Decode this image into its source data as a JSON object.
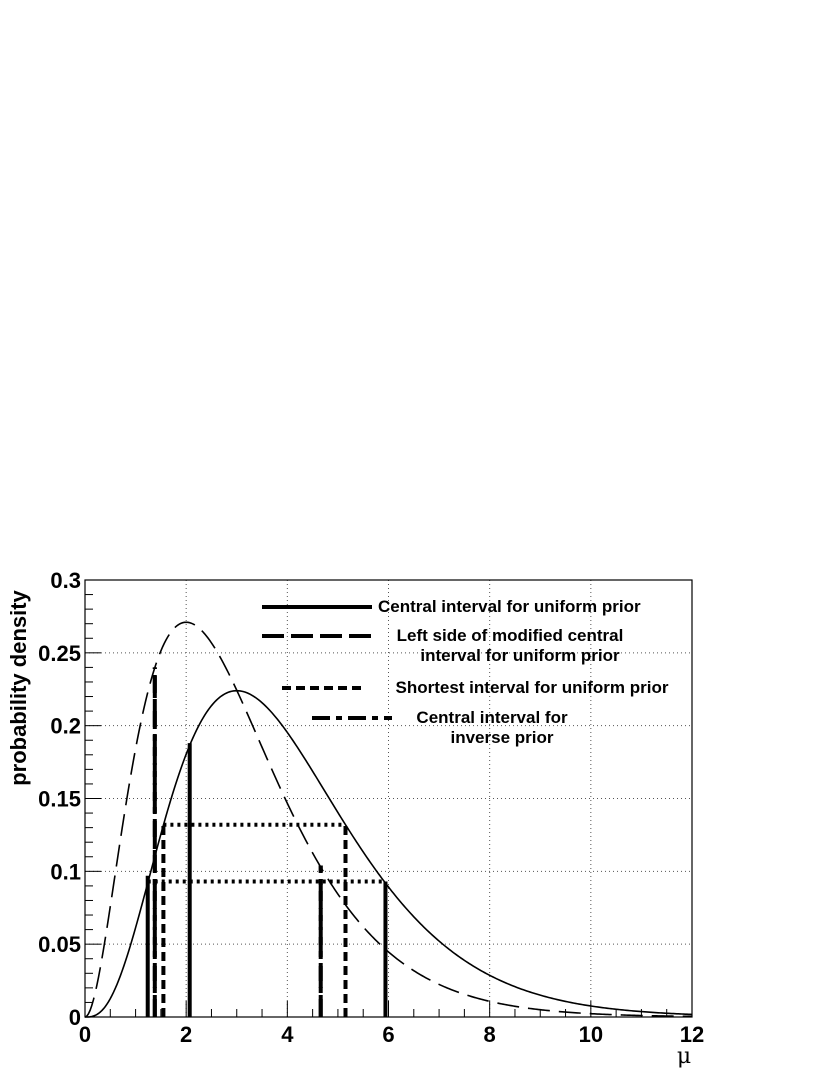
{
  "chart_data": {
    "type": "line",
    "xlabel": "μ",
    "ylabel": "probability density",
    "xlim": [
      0,
      12
    ],
    "ylim": [
      0,
      0.3
    ],
    "x_ticks": [
      "0",
      "2",
      "4",
      "6",
      "8",
      "10",
      "12"
    ],
    "y_ticks": [
      "0",
      "0.05",
      "0.1",
      "0.15",
      "0.2",
      "0.25",
      "0.3"
    ],
    "grid": true,
    "legend_position": "top-right",
    "curves": [
      {
        "style": "solid",
        "mode": 3,
        "peak": 0.224
      },
      {
        "style": "dashed",
        "mode": 2,
        "peak": 0.271
      }
    ],
    "intervals": [
      {
        "legend_lines": [
          "Central interval for uniform prior"
        ],
        "style": "solid",
        "segments": [
          [
            1.24,
            0.097
          ],
          [
            2.07,
            0.188
          ],
          [
            5.94,
            0.093
          ]
        ],
        "connector": {
          "x": [
            1.24,
            5.94
          ],
          "y": 0.093
        }
      },
      {
        "legend_lines": [
          "Left side of modified central",
          "interval for uniform prior"
        ],
        "style": "long-dash",
        "segments": [
          [
            1.38,
            0.24
          ],
          [
            4.66,
            0.104
          ]
        ]
      },
      {
        "legend_lines": [
          "Shortest interval for uniform prior"
        ],
        "style": "short-dash",
        "segments": [
          [
            1.55,
            0.132
          ],
          [
            5.15,
            0.132
          ]
        ],
        "connector": {
          "x": [
            1.55,
            5.15
          ],
          "y": 0.132
        }
      },
      {
        "legend_lines": [
          "Central interval for",
          "inverse prior"
        ],
        "style": "dash-dot",
        "segments": [
          [
            1.38,
            0.24
          ],
          [
            4.66,
            0.104
          ]
        ]
      }
    ]
  }
}
